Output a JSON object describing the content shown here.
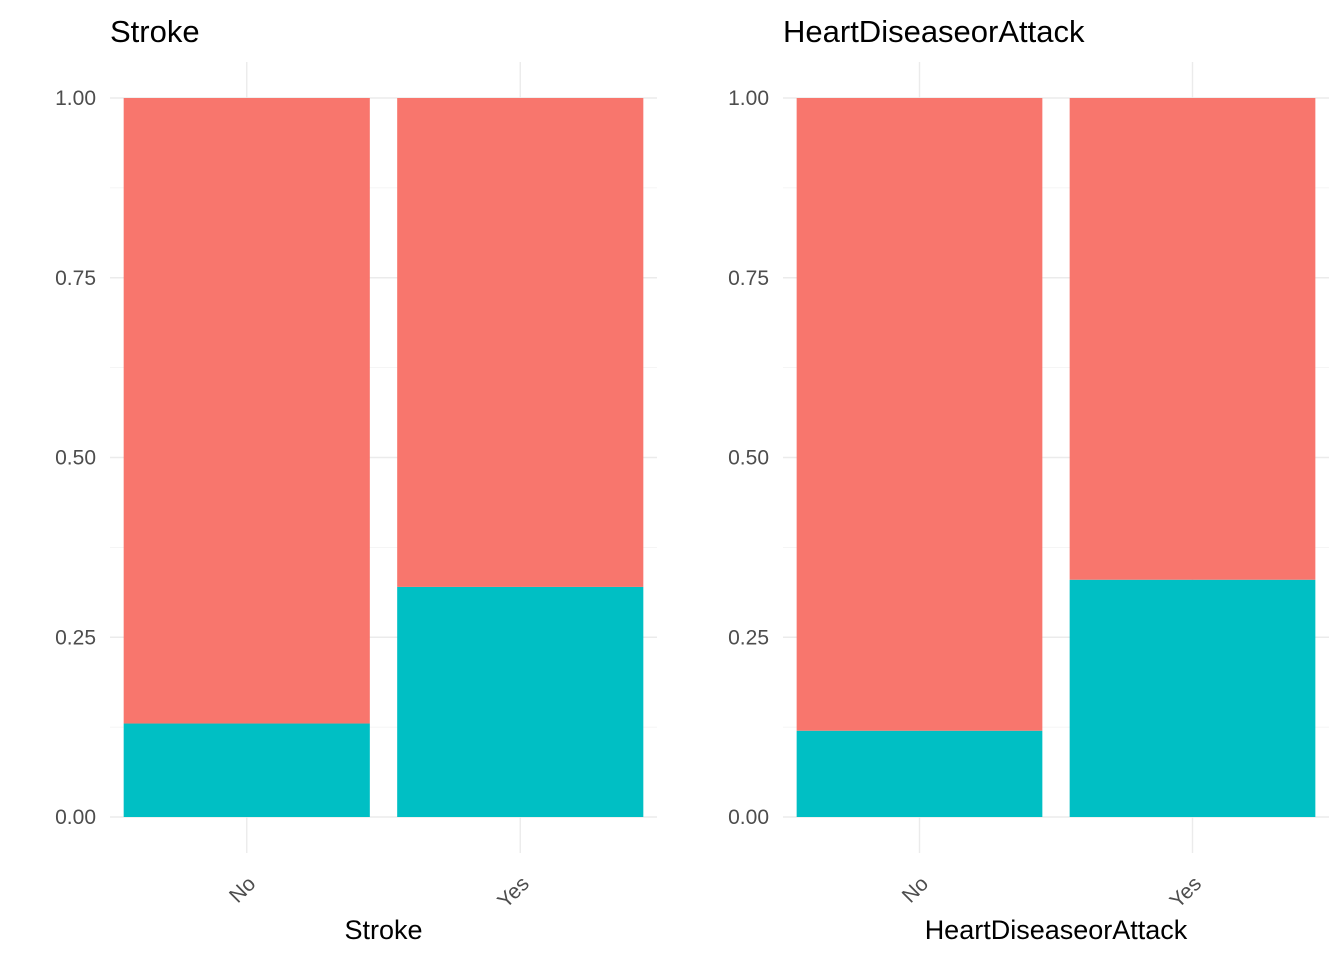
{
  "chart_data": [
    {
      "type": "bar",
      "stacked": true,
      "title": "Stroke",
      "xlabel": "Stroke",
      "ylabel": "",
      "categories": [
        "No",
        "Yes"
      ],
      "ylim": [
        0,
        1
      ],
      "yticks": [
        0.0,
        0.25,
        0.5,
        0.75,
        1.0
      ],
      "ytick_labels": [
        "0.00",
        "0.25",
        "0.50",
        "0.75",
        "1.00"
      ],
      "grid": true,
      "legend": "none",
      "series": [
        {
          "color": "#00BFC4",
          "values": [
            0.13,
            0.32
          ]
        },
        {
          "color": "#F8766D",
          "values": [
            0.87,
            0.68
          ]
        }
      ]
    },
    {
      "type": "bar",
      "stacked": true,
      "title": "HeartDiseaseorAttack",
      "xlabel": "HeartDiseaseorAttack",
      "ylabel": "",
      "categories": [
        "No",
        "Yes"
      ],
      "ylim": [
        0,
        1
      ],
      "yticks": [
        0.0,
        0.25,
        0.5,
        0.75,
        1.0
      ],
      "ytick_labels": [
        "0.00",
        "0.25",
        "0.50",
        "0.75",
        "1.00"
      ],
      "grid": true,
      "legend": "none",
      "series": [
        {
          "color": "#00BFC4",
          "values": [
            0.12,
            0.33
          ]
        },
        {
          "color": "#F8766D",
          "values": [
            0.88,
            0.67
          ]
        }
      ]
    }
  ]
}
